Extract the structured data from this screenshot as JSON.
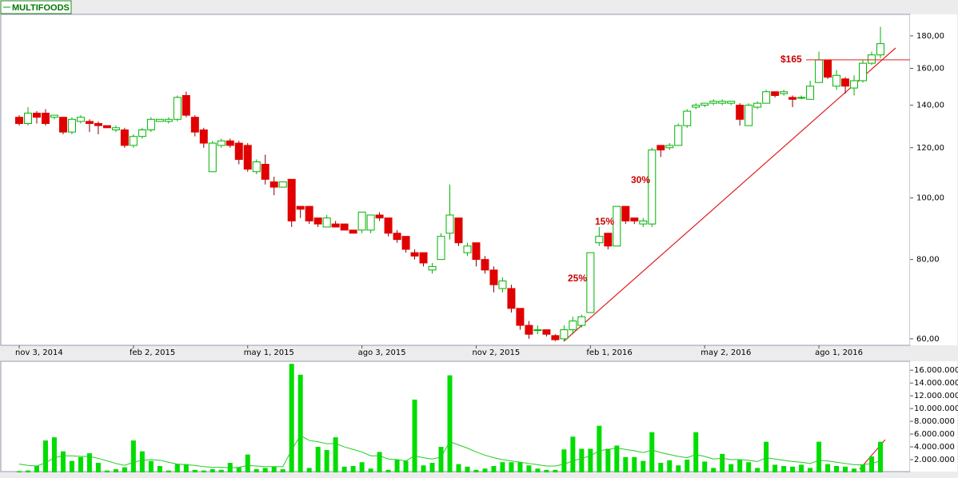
{
  "chart_data": [
    {
      "type": "candlestick",
      "title": "MULTIFOODS",
      "log_scale": true,
      "up_color": "#00b400",
      "down_color": "#e00000",
      "categories": [
        "nov 3, 2014",
        null,
        null,
        null,
        null,
        null,
        null,
        null,
        null,
        null,
        null,
        null,
        null,
        "feb 2, 2015",
        null,
        null,
        null,
        null,
        null,
        null,
        null,
        null,
        null,
        null,
        null,
        null,
        "may 1, 2015",
        null,
        null,
        null,
        null,
        null,
        null,
        null,
        null,
        null,
        null,
        null,
        null,
        "ago 3, 2015",
        null,
        null,
        null,
        null,
        null,
        null,
        null,
        null,
        null,
        null,
        null,
        null,
        "nov 2, 2015",
        null,
        null,
        null,
        null,
        null,
        null,
        null,
        null,
        null,
        null,
        null,
        null,
        "feb 1, 2016",
        null,
        null,
        null,
        null,
        null,
        null,
        null,
        null,
        null,
        null,
        null,
        null,
        "may 2, 2016",
        null,
        null,
        null,
        null,
        null,
        null,
        null,
        null,
        null,
        null,
        null,
        null,
        "ago 1, 2016",
        null,
        null,
        null,
        null,
        null,
        null,
        null
      ],
      "open": [
        134,
        131,
        136,
        136,
        134,
        134,
        127,
        132,
        132,
        131,
        130,
        128,
        128,
        121,
        125,
        128,
        132,
        132,
        133,
        145,
        134,
        128,
        110,
        121,
        123,
        122,
        121,
        110,
        113,
        106,
        104,
        107,
        97,
        97,
        93,
        90,
        91,
        91,
        89,
        89,
        89,
        94,
        93,
        88,
        87,
        82,
        82,
        77,
        80,
        88,
        93,
        82,
        85,
        80,
        77,
        72,
        72,
        67,
        63,
        62,
        62,
        60.7,
        60,
        62,
        63,
        66,
        85,
        88,
        84,
        97,
        93,
        91,
        91,
        121,
        120,
        121,
        130,
        139,
        140,
        141,
        141,
        141,
        140,
        130,
        139,
        141,
        147,
        146,
        144,
        144,
        143,
        152,
        165,
        150,
        154,
        149,
        153,
        163,
        168
      ],
      "high": [
        135,
        139,
        137,
        138,
        135,
        134,
        134,
        135,
        133,
        132,
        130,
        130,
        129,
        126,
        129,
        134,
        133,
        134,
        145,
        147,
        135,
        129,
        123,
        124,
        124,
        123,
        122,
        115,
        117,
        108,
        106,
        107,
        97,
        97,
        93,
        94,
        92,
        91,
        89,
        95,
        94,
        95,
        93,
        89,
        87,
        83,
        82,
        79,
        88,
        105,
        93,
        85,
        85,
        81,
        78,
        75,
        73,
        67,
        64,
        63,
        62,
        61,
        63,
        65,
        65.5,
        82,
        90,
        88,
        97,
        97,
        93,
        93,
        120,
        121,
        122,
        131,
        138,
        141,
        141,
        143,
        143,
        142,
        141,
        141,
        142,
        148,
        147,
        148,
        145,
        145,
        153,
        170,
        165,
        159,
        155,
        156,
        165,
        170,
        186
      ],
      "low": [
        130,
        130,
        131,
        130,
        133,
        126,
        126,
        131,
        127,
        126,
        129,
        127,
        120,
        120,
        124,
        127,
        132,
        131,
        132,
        134,
        125,
        120,
        110,
        120,
        120,
        113,
        110,
        109,
        105,
        101,
        104,
        90,
        93,
        91,
        90,
        90,
        90,
        89,
        88,
        88,
        88,
        92,
        87,
        85,
        82,
        80,
        78,
        76,
        80,
        86,
        84,
        81,
        78,
        76,
        71,
        71,
        66,
        62,
        60,
        61,
        60.5,
        59.5,
        59.5,
        61,
        62.5,
        66,
        84,
        83,
        84,
        91,
        91,
        90,
        90,
        116,
        119,
        121,
        129,
        138,
        139,
        140,
        140,
        140,
        130,
        130,
        138,
        141,
        144,
        145,
        139,
        143,
        143,
        152,
        154,
        148,
        146,
        145,
        152,
        162,
        166
      ],
      "close": [
        131,
        136,
        134,
        131,
        135,
        127,
        133,
        134,
        131,
        130,
        129,
        129,
        121,
        125,
        128,
        133,
        133,
        133,
        144,
        135,
        127,
        122,
        122,
        123,
        121,
        115,
        111,
        114,
        107,
        104,
        106,
        92,
        96,
        92,
        91,
        93,
        90,
        89,
        88,
        95,
        94,
        93,
        88,
        86,
        83,
        81,
        79,
        78,
        87,
        94,
        85,
        84,
        80,
        77,
        73,
        74,
        67,
        63,
        61,
        62,
        61,
        59.8,
        62,
        64,
        65,
        82,
        87,
        84,
        97,
        92,
        92,
        92,
        119,
        119,
        121,
        130,
        137,
        140,
        141,
        142,
        142,
        142,
        133,
        140,
        141,
        147,
        145,
        147,
        143,
        144,
        150,
        165,
        155,
        156,
        150,
        153,
        163,
        168,
        175
      ],
      "ylim": [
        58.6,
        194.6
      ],
      "yticks": [
        {
          "value": 60,
          "label": "60,00"
        },
        {
          "value": 80,
          "label": "80,00"
        },
        {
          "value": 100,
          "label": "100,00"
        },
        {
          "value": 120,
          "label": "120,00"
        },
        {
          "value": 140,
          "label": "140,00"
        },
        {
          "value": 160,
          "label": "160,00"
        },
        {
          "value": 180,
          "label": "180,00"
        }
      ],
      "annotations": [
        {
          "text": "$165",
          "value": 165
        },
        {
          "text": "25%"
        },
        {
          "text": "15%"
        },
        {
          "text": "30%"
        }
      ]
    },
    {
      "type": "bar",
      "color": "#00dd00",
      "line_color": "#22cc22",
      "values": [
        200000,
        300000,
        1000000,
        5000000,
        5500000,
        3300000,
        1800000,
        2400000,
        3000000,
        1500000,
        300000,
        500000,
        800000,
        5000000,
        3300000,
        1800000,
        1000000,
        300000,
        1300000,
        1300000,
        400000,
        300000,
        500000,
        400000,
        1500000,
        800000,
        2800000,
        500000,
        700000,
        900000,
        500000,
        17000000,
        15300000,
        700000,
        4000000,
        3500000,
        5500000,
        900000,
        1000000,
        1600000,
        600000,
        3200000,
        400000,
        2000000,
        1800000,
        11400000,
        1100000,
        1500000,
        4000000,
        15200000,
        1300000,
        900000,
        400000,
        600000,
        1000000,
        1600000,
        1600000,
        1600000,
        1100000,
        600000,
        400000,
        400000,
        3600000,
        5600000,
        3700000,
        3700000,
        7300000,
        3700000,
        4200000,
        2400000,
        2400000,
        1800000,
        6300000,
        1500000,
        1900000,
        1100000,
        2000000,
        6300000,
        1700000,
        700000,
        2900000,
        1300000,
        2000000,
        1600000,
        700000,
        4800000,
        1200000,
        1000000,
        900000,
        1200000,
        700000,
        4800000,
        1300000,
        1000000,
        900000,
        600000,
        1200000,
        2500000,
        4800000
      ],
      "line_values": [
        1300000,
        1100000,
        1000000,
        1500000,
        2300000,
        2600000,
        2600000,
        2500000,
        2500000,
        2200000,
        1800000,
        1400000,
        1100000,
        1600000,
        1900000,
        2000000,
        1900000,
        1600000,
        1300000,
        1200000,
        1100000,
        900000,
        800000,
        800000,
        700000,
        800000,
        1100000,
        1000000,
        900000,
        900000,
        900000,
        3500000,
        5800000,
        5000000,
        4800000,
        4500000,
        4500000,
        4000000,
        3600000,
        3200000,
        2600000,
        2600000,
        2100000,
        2000000,
        1800000,
        2600000,
        2300000,
        2100000,
        2400000,
        4800000,
        4300000,
        3800000,
        3200000,
        2700000,
        2300000,
        2000000,
        1800000,
        1600000,
        1400000,
        1200000,
        1000000,
        1000000,
        1300000,
        1800000,
        2200000,
        2600000,
        3400000,
        3600000,
        3800000,
        3600000,
        3400000,
        3100000,
        3500000,
        3100000,
        2800000,
        2500000,
        2300000,
        2800000,
        2500000,
        2100000,
        2200000,
        2000000,
        2000000,
        1900000,
        1700000,
        2300000,
        2100000,
        1900000,
        1700000,
        1600000,
        1400000,
        1900000,
        1800000,
        1600000,
        1400000,
        1200000,
        1200000,
        1400000,
        1800000
      ],
      "ylim": [
        0,
        17400000
      ],
      "yticks": [
        {
          "value": 2000000,
          "label": "2.000.000"
        },
        {
          "value": 4000000,
          "label": "4.000.000"
        },
        {
          "value": 6000000,
          "label": "6.000.000"
        },
        {
          "value": 8000000,
          "label": "8.000.000"
        },
        {
          "value": 10000000,
          "label": "10.000.000"
        },
        {
          "value": 12000000,
          "label": "12.000.000"
        },
        {
          "value": 14000000,
          "label": "14.000.000"
        },
        {
          "value": 16000000,
          "label": "16.000.000"
        }
      ]
    }
  ]
}
